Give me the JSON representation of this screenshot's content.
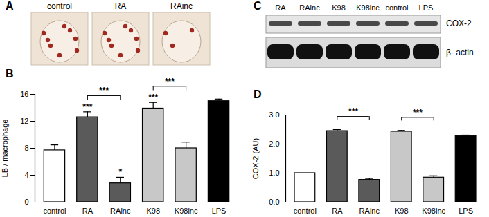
{
  "chart_data": [
    {
      "type": "bar",
      "title": "B",
      "categories": [
        "control",
        "RA",
        "RAinc",
        "K98",
        "K98inc",
        "LPS"
      ],
      "values": [
        7.7,
        12.6,
        2.8,
        13.9,
        8.0,
        15.0
      ],
      "errors": [
        0.8,
        0.8,
        0.9,
        0.9,
        0.9,
        0.3
      ],
      "colors": [
        "#ffffff",
        "#5a5a5a",
        "#5a5a5a",
        "#c8c8c8",
        "#c8c8c8",
        "#000000"
      ],
      "ylabel": "LB / macrophage",
      "ylim": [
        0,
        16
      ],
      "yticks": [
        0,
        4,
        8,
        12,
        16
      ],
      "annotations": [
        {
          "category": "RA",
          "text": "***"
        },
        {
          "category": "RAinc",
          "text": "*"
        },
        {
          "category": "K98",
          "text": "***"
        }
      ],
      "brackets": [
        {
          "from": "RA",
          "to": "RAinc",
          "text": "***"
        },
        {
          "from": "K98",
          "to": "K98inc",
          "text": "***"
        }
      ]
    },
    {
      "type": "bar",
      "title": "D",
      "categories": [
        "control",
        "RA",
        "RAinc",
        "K98",
        "K98inc",
        "LPS"
      ],
      "values": [
        1.0,
        2.45,
        0.77,
        2.43,
        0.85,
        2.28
      ],
      "errors": [
        0,
        0.05,
        0.05,
        0.04,
        0.06,
        0.03
      ],
      "colors": [
        "#ffffff",
        "#5a5a5a",
        "#5a5a5a",
        "#c8c8c8",
        "#c8c8c8",
        "#000000"
      ],
      "ylabel": "COX-2 (AU)",
      "ylim": [
        0,
        3
      ],
      "yticks": [
        0,
        1,
        2,
        3
      ],
      "annotations": [],
      "brackets": [
        {
          "from": "RA",
          "to": "RAinc",
          "text": "***"
        },
        {
          "from": "K98",
          "to": "K98inc",
          "text": "***"
        }
      ]
    }
  ],
  "panel_a": {
    "title": "A",
    "labels": [
      "control",
      "RA",
      "RAinc"
    ]
  },
  "panel_c": {
    "title": "C",
    "lanes": [
      "RA",
      "RAinc",
      "K98",
      "K98inc",
      "control",
      "LPS"
    ],
    "bands": [
      "COX-2",
      "β- actin"
    ]
  }
}
